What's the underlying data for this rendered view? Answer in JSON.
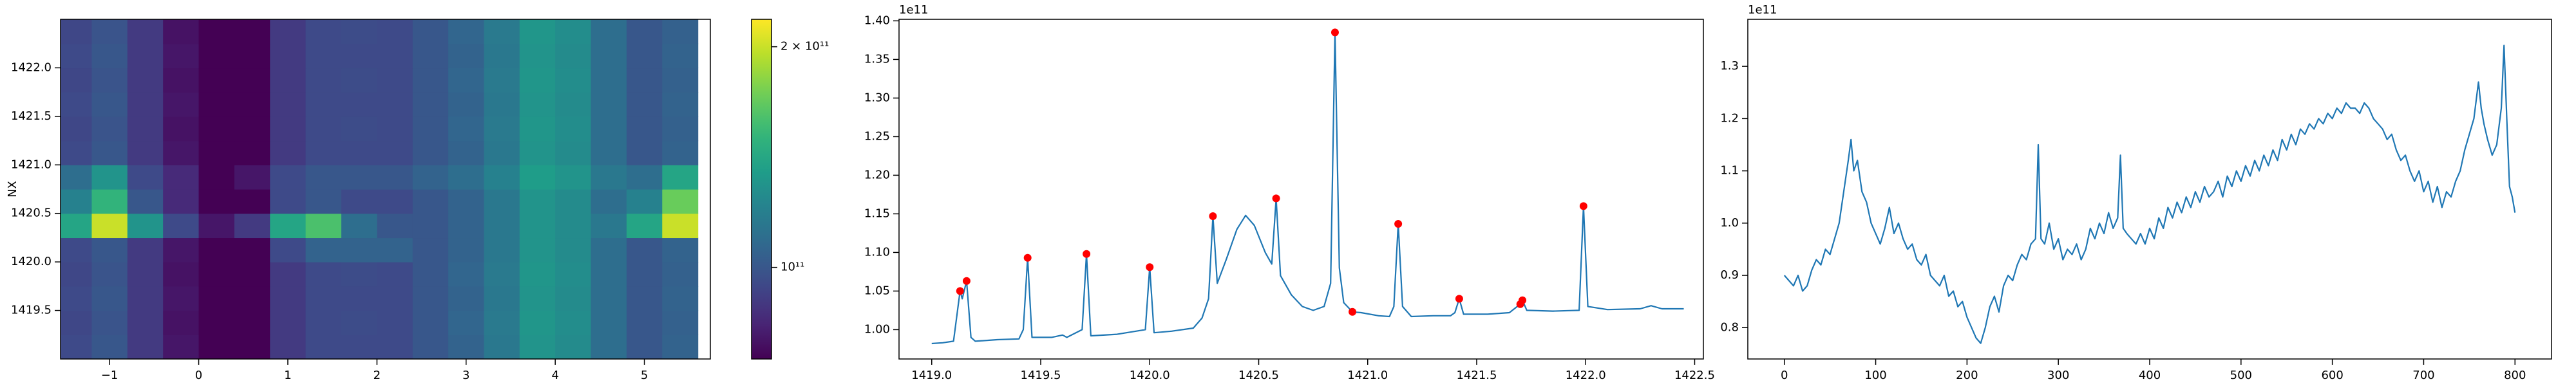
{
  "chart_data": [
    {
      "type": "heatmap",
      "ylabel": "NX",
      "xlim": [
        -1.55,
        5.74
      ],
      "ylim": [
        1419.0,
        1422.5
      ],
      "xticks": [
        {
          "value": -1,
          "label": "−1"
        },
        0,
        1,
        2,
        3,
        4,
        5
      ],
      "yticks": [
        1419.5,
        {
          "value": 1420,
          "label": "1420.0"
        },
        1420.5,
        {
          "value": 1421,
          "label": "1421.0"
        },
        1421.5,
        {
          "value": 1422,
          "label": "1422.0"
        }
      ],
      "clim": [
        75000000000.0,
        218000000000.0
      ],
      "color_scale": "log",
      "colormap": "viridis",
      "cticks": [
        {
          "value": 100000000000.0,
          "label": "10¹¹"
        },
        {
          "value": 200000000000.0,
          "label": "2 × 10¹¹"
        }
      ],
      "x": [
        -1.4,
        -1.0,
        -0.6,
        -0.2,
        0.2,
        0.6,
        1.0,
        1.4,
        1.8,
        2.2,
        2.6,
        3.0,
        3.4,
        3.8,
        4.2,
        4.6,
        5.0,
        5.4
      ],
      "y": [
        1419.125,
        1419.375,
        1419.625,
        1419.875,
        1420.125,
        1420.375,
        1420.625,
        1420.875,
        1421.125,
        1421.375,
        1421.625,
        1421.875,
        1422.125,
        1422.375
      ],
      "z": [
        [
          95000000000.0,
          100000000000.0,
          90000000000.0,
          80000000000.0,
          65000000000.0,
          75000000000.0,
          90000000000.0,
          95000000000.0,
          95000000000.0,
          95000000000.0,
          100000000000.0,
          105000000000.0,
          115000000000.0,
          130000000000.0,
          125000000000.0,
          110000000000.0,
          100000000000.0,
          105000000000.0
        ],
        [
          94000000000.0,
          99000000000.0,
          90000000000.0,
          79000000000.0,
          64000000000.0,
          74000000000.0,
          90000000000.0,
          95000000000.0,
          96000000000.0,
          95000000000.0,
          100000000000.0,
          106000000000.0,
          116000000000.0,
          131000000000.0,
          126000000000.0,
          110000000000.0,
          100000000000.0,
          104000000000.0
        ],
        [
          95000000000.0,
          100000000000.0,
          90000000000.0,
          80000000000.0,
          65000000000.0,
          75000000000.0,
          90000000000.0,
          95000000000.0,
          95000000000.0,
          95000000000.0,
          100000000000.0,
          105000000000.0,
          115000000000.0,
          130000000000.0,
          125000000000.0,
          110000000000.0,
          100000000000.0,
          105000000000.0
        ],
        [
          94000000000.0,
          99000000000.0,
          90000000000.0,
          79000000000.0,
          64000000000.0,
          74000000000.0,
          90000000000.0,
          95000000000.0,
          96000000000.0,
          95000000000.0,
          100000000000.0,
          106000000000.0,
          116000000000.0,
          131000000000.0,
          126000000000.0,
          110000000000.0,
          100000000000.0,
          104000000000.0
        ],
        [
          95000000000.0,
          100000000000.0,
          90000000000.0,
          80000000000.0,
          65000000000.0,
          75000000000.0,
          95000000000.0,
          105000000000.0,
          105000000000.0,
          105000000000.0,
          100000000000.0,
          105000000000.0,
          115000000000.0,
          130000000000.0,
          125000000000.0,
          110000000000.0,
          100000000000.0,
          105000000000.0
        ],
        [
          140000000000.0,
          200000000000.0,
          130000000000.0,
          95000000000.0,
          80000000000.0,
          90000000000.0,
          140000000000.0,
          160000000000.0,
          110000000000.0,
          100000000000.0,
          100000000000.0,
          105000000000.0,
          115000000000.0,
          130000000000.0,
          125000000000.0,
          115000000000.0,
          140000000000.0,
          200000000000.0
        ],
        [
          120000000000.0,
          150000000000.0,
          100000000000.0,
          85000000000.0,
          65000000000.0,
          75000000000.0,
          95000000000.0,
          100000000000.0,
          95000000000.0,
          95000000000.0,
          100000000000.0,
          105000000000.0,
          115000000000.0,
          130000000000.0,
          125000000000.0,
          110000000000.0,
          120000000000.0,
          170000000000.0
        ],
        [
          110000000000.0,
          130000000000.0,
          95000000000.0,
          85000000000.0,
          70000000000.0,
          80000000000.0,
          95000000000.0,
          100000000000.0,
          100000000000.0,
          100000000000.0,
          105000000000.0,
          110000000000.0,
          120000000000.0,
          135000000000.0,
          130000000000.0,
          115000000000.0,
          110000000000.0,
          140000000000.0
        ],
        [
          95000000000.0,
          100000000000.0,
          90000000000.0,
          80000000000.0,
          65000000000.0,
          75000000000.0,
          90000000000.0,
          95000000000.0,
          95000000000.0,
          95000000000.0,
          100000000000.0,
          105000000000.0,
          115000000000.0,
          130000000000.0,
          125000000000.0,
          110000000000.0,
          100000000000.0,
          105000000000.0
        ],
        [
          94000000000.0,
          99000000000.0,
          90000000000.0,
          79000000000.0,
          64000000000.0,
          74000000000.0,
          90000000000.0,
          95000000000.0,
          96000000000.0,
          95000000000.0,
          100000000000.0,
          106000000000.0,
          116000000000.0,
          131000000000.0,
          126000000000.0,
          110000000000.0,
          100000000000.0,
          104000000000.0
        ],
        [
          95000000000.0,
          100000000000.0,
          90000000000.0,
          80000000000.0,
          65000000000.0,
          75000000000.0,
          90000000000.0,
          95000000000.0,
          95000000000.0,
          95000000000.0,
          100000000000.0,
          105000000000.0,
          115000000000.0,
          130000000000.0,
          125000000000.0,
          110000000000.0,
          100000000000.0,
          105000000000.0
        ],
        [
          94000000000.0,
          99000000000.0,
          90000000000.0,
          79000000000.0,
          64000000000.0,
          74000000000.0,
          90000000000.0,
          95000000000.0,
          96000000000.0,
          95000000000.0,
          100000000000.0,
          106000000000.0,
          116000000000.0,
          131000000000.0,
          126000000000.0,
          110000000000.0,
          100000000000.0,
          104000000000.0
        ],
        [
          95000000000.0,
          100000000000.0,
          90000000000.0,
          80000000000.0,
          65000000000.0,
          75000000000.0,
          90000000000.0,
          95000000000.0,
          95000000000.0,
          95000000000.0,
          100000000000.0,
          105000000000.0,
          115000000000.0,
          130000000000.0,
          125000000000.0,
          110000000000.0,
          100000000000.0,
          105000000000.0
        ],
        [
          94000000000.0,
          99000000000.0,
          90000000000.0,
          79000000000.0,
          64000000000.0,
          74000000000.0,
          90000000000.0,
          95000000000.0,
          96000000000.0,
          95000000000.0,
          100000000000.0,
          106000000000.0,
          116000000000.0,
          131000000000.0,
          126000000000.0,
          110000000000.0,
          100000000000.0,
          104000000000.0
        ]
      ]
    },
    {
      "type": "line",
      "y_offset_label": "1e11",
      "xlim": [
        1418.85,
        1422.54
      ],
      "ylim": [
        0.962,
        1.402
      ],
      "xticks": [
        {
          "value": 1419,
          "label": "1419.0"
        },
        1419.5,
        {
          "value": 1420,
          "label": "1420.0"
        },
        1420.5,
        {
          "value": 1421,
          "label": "1421.0"
        },
        1421.5,
        {
          "value": 1422,
          "label": "1422.0"
        },
        1422.5
      ],
      "yticks": [
        {
          "value": 1,
          "label": "1.00"
        },
        1.05,
        {
          "value": 1.1,
          "label": "1.10"
        },
        1.15,
        {
          "value": 1.2,
          "label": "1.20"
        },
        1.25,
        {
          "value": 1.3,
          "label": "1.30"
        },
        1.35,
        {
          "value": 1.4,
          "label": "1.40"
        }
      ],
      "series": [
        {
          "style": "line",
          "color": "#1f77b4",
          "x": [
            1419.0,
            1419.05,
            1419.1,
            1419.13,
            1419.14,
            1419.16,
            1419.18,
            1419.2,
            1419.3,
            1419.4,
            1419.42,
            1419.44,
            1419.46,
            1419.55,
            1419.6,
            1419.62,
            1419.69,
            1419.71,
            1419.73,
            1419.85,
            1419.98,
            1420.0,
            1420.02,
            1420.1,
            1420.2,
            1420.24,
            1420.27,
            1420.29,
            1420.31,
            1420.35,
            1420.4,
            1420.44,
            1420.48,
            1420.53,
            1420.56,
            1420.58,
            1420.6,
            1420.65,
            1420.7,
            1420.75,
            1420.8,
            1420.83,
            1420.85,
            1420.87,
            1420.89,
            1420.93,
            1420.97,
            1421.05,
            1421.1,
            1421.12,
            1421.14,
            1421.16,
            1421.2,
            1421.3,
            1421.38,
            1421.4,
            1421.42,
            1421.44,
            1421.55,
            1421.65,
            1421.7,
            1421.71,
            1421.73,
            1421.85,
            1421.97,
            1421.99,
            1422.01,
            1422.1,
            1422.25,
            1422.3,
            1422.35,
            1422.45
          ],
          "values": [
            0.982,
            0.983,
            0.985,
            1.05,
            1.04,
            1.063,
            0.99,
            0.985,
            0.987,
            0.988,
            1.0,
            1.093,
            0.99,
            0.99,
            0.993,
            0.99,
            1.0,
            1.098,
            0.992,
            0.994,
            1.0,
            1.081,
            0.996,
            0.998,
            1.002,
            1.015,
            1.04,
            1.147,
            1.06,
            1.09,
            1.13,
            1.148,
            1.135,
            1.1,
            1.085,
            1.17,
            1.07,
            1.045,
            1.03,
            1.025,
            1.03,
            1.06,
            1.385,
            1.08,
            1.035,
            1.023,
            1.022,
            1.018,
            1.017,
            1.03,
            1.137,
            1.03,
            1.017,
            1.018,
            1.018,
            1.022,
            1.04,
            1.02,
            1.02,
            1.022,
            1.033,
            1.038,
            1.025,
            1.024,
            1.025,
            1.16,
            1.03,
            1.026,
            1.027,
            1.031,
            1.027,
            1.027
          ]
        },
        {
          "style": "points",
          "color": "red",
          "x": [
            1419.13,
            1419.16,
            1419.44,
            1419.71,
            1420.0,
            1420.29,
            1420.58,
            1420.85,
            1420.93,
            1421.14,
            1421.42,
            1421.7,
            1421.71,
            1421.99
          ],
          "values": [
            1.05,
            1.063,
            1.093,
            1.098,
            1.081,
            1.147,
            1.17,
            1.385,
            1.023,
            1.137,
            1.04,
            1.033,
            1.038,
            1.16
          ]
        }
      ]
    },
    {
      "type": "line",
      "y_offset_label": "1e11",
      "xlim": [
        -40,
        840
      ],
      "ylim": [
        0.74,
        1.39
      ],
      "xticks": [
        0,
        100,
        200,
        300,
        400,
        500,
        600,
        700,
        800
      ],
      "yticks": [
        0.8,
        0.9,
        {
          "value": 1,
          "label": "1.0"
        },
        1.1,
        1.2,
        1.3
      ],
      "series": [
        {
          "style": "line",
          "color": "#1f77b4",
          "x": [
            0,
            5,
            10,
            15,
            20,
            25,
            30,
            35,
            40,
            45,
            50,
            55,
            60,
            65,
            70,
            73,
            76,
            80,
            85,
            90,
            95,
            100,
            105,
            110,
            115,
            120,
            125,
            130,
            135,
            140,
            145,
            150,
            155,
            160,
            165,
            170,
            175,
            180,
            185,
            190,
            195,
            200,
            205,
            210,
            215,
            220,
            225,
            230,
            235,
            240,
            245,
            250,
            255,
            260,
            265,
            270,
            275,
            278,
            281,
            285,
            290,
            295,
            300,
            305,
            310,
            315,
            320,
            325,
            330,
            335,
            340,
            345,
            350,
            355,
            360,
            365,
            368,
            371,
            375,
            380,
            385,
            390,
            395,
            400,
            405,
            410,
            415,
            420,
            425,
            430,
            435,
            440,
            445,
            450,
            455,
            460,
            465,
            470,
            475,
            480,
            485,
            490,
            495,
            500,
            505,
            510,
            515,
            520,
            525,
            530,
            535,
            540,
            545,
            550,
            555,
            560,
            565,
            570,
            575,
            580,
            585,
            590,
            595,
            600,
            605,
            610,
            615,
            620,
            625,
            630,
            635,
            640,
            645,
            650,
            655,
            660,
            665,
            670,
            675,
            680,
            685,
            690,
            695,
            700,
            705,
            710,
            715,
            720,
            725,
            730,
            735,
            740,
            745,
            750,
            755,
            760,
            763,
            766,
            770,
            775,
            780,
            785,
            788,
            791,
            794,
            797,
            800
          ],
          "values": [
            0.9,
            0.89,
            0.88,
            0.9,
            0.87,
            0.88,
            0.91,
            0.93,
            0.92,
            0.95,
            0.94,
            0.97,
            1.0,
            1.06,
            1.12,
            1.16,
            1.1,
            1.12,
            1.06,
            1.04,
            1.0,
            0.98,
            0.96,
            0.99,
            1.03,
            0.98,
            1.0,
            0.97,
            0.95,
            0.96,
            0.93,
            0.92,
            0.94,
            0.9,
            0.89,
            0.88,
            0.9,
            0.86,
            0.87,
            0.84,
            0.85,
            0.82,
            0.8,
            0.78,
            0.77,
            0.8,
            0.84,
            0.86,
            0.83,
            0.88,
            0.9,
            0.89,
            0.92,
            0.94,
            0.93,
            0.96,
            0.97,
            1.15,
            0.97,
            0.96,
            1.0,
            0.95,
            0.97,
            0.93,
            0.95,
            0.94,
            0.96,
            0.93,
            0.95,
            0.99,
            0.97,
            1.0,
            0.98,
            1.02,
            0.99,
            1.01,
            1.13,
            0.99,
            0.98,
            0.97,
            0.96,
            0.98,
            0.96,
            0.99,
            0.97,
            1.01,
            0.99,
            1.03,
            1.01,
            1.04,
            1.02,
            1.05,
            1.03,
            1.06,
            1.04,
            1.07,
            1.05,
            1.06,
            1.08,
            1.05,
            1.09,
            1.07,
            1.1,
            1.08,
            1.11,
            1.09,
            1.12,
            1.1,
            1.13,
            1.11,
            1.14,
            1.12,
            1.16,
            1.14,
            1.17,
            1.15,
            1.18,
            1.17,
            1.19,
            1.18,
            1.2,
            1.19,
            1.21,
            1.2,
            1.22,
            1.21,
            1.23,
            1.22,
            1.22,
            1.21,
            1.23,
            1.22,
            1.2,
            1.19,
            1.18,
            1.16,
            1.17,
            1.14,
            1.12,
            1.13,
            1.1,
            1.08,
            1.1,
            1.06,
            1.08,
            1.04,
            1.07,
            1.03,
            1.06,
            1.05,
            1.08,
            1.1,
            1.14,
            1.17,
            1.2,
            1.27,
            1.22,
            1.19,
            1.16,
            1.13,
            1.15,
            1.22,
            1.34,
            1.2,
            1.07,
            1.05,
            1.02
          ]
        }
      ]
    }
  ]
}
